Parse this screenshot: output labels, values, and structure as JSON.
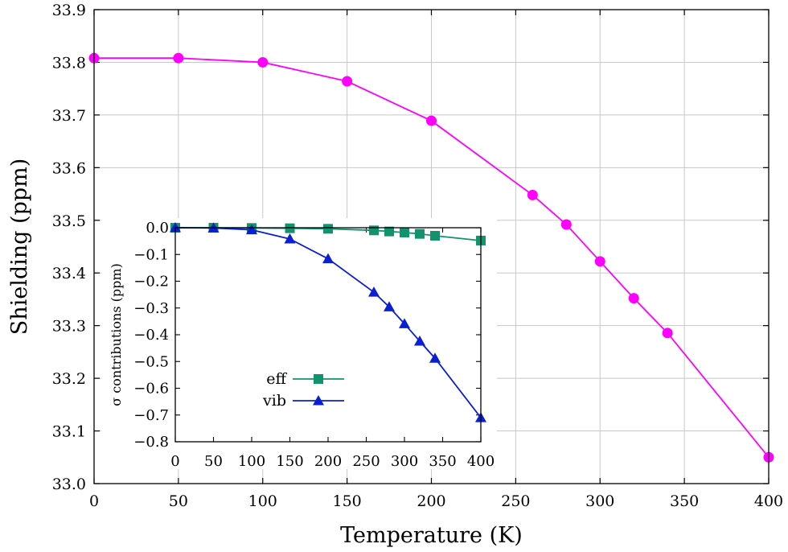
{
  "chart_data": [
    {
      "type": "line",
      "xlabel": "Temperature (K)",
      "ylabel": "Shielding (ppm)",
      "xlim": [
        0,
        400
      ],
      "ylim": [
        33.0,
        33.9
      ],
      "xticks": [
        "0",
        "50",
        "100",
        "150",
        "200",
        "250",
        "300",
        "350",
        "400"
      ],
      "yticks": [
        "33.0",
        "33.1",
        "33.2",
        "33.3",
        "33.4",
        "33.5",
        "33.6",
        "33.7",
        "33.8",
        "33.9"
      ],
      "grid": true,
      "series": [
        {
          "color": "#ff00ff",
          "marker": "circle",
          "x": [
            0,
            50,
            100,
            150,
            200,
            260,
            280,
            300,
            320,
            340,
            400
          ],
          "y": [
            33.808,
            33.808,
            33.8,
            33.764,
            33.689,
            33.548,
            33.492,
            33.422,
            33.352,
            33.286,
            33.05
          ]
        }
      ]
    },
    {
      "type": "line",
      "xlabel": "",
      "ylabel": "σ contributions (ppm)",
      "xlim": [
        0,
        400
      ],
      "ylim": [
        -0.8,
        0.0
      ],
      "xticks": [
        "0",
        "50",
        "100",
        "150",
        "200",
        "250",
        "300",
        "350",
        "400"
      ],
      "yticks": [
        "0.0",
        "−0.1",
        "−0.2",
        "−0.3",
        "−0.4",
        "−0.5",
        "−0.6",
        "−0.7",
        "−0.8"
      ],
      "grid": false,
      "legend_position": "bottom-left",
      "series": [
        {
          "name": "eff",
          "color": "#12936e",
          "marker": "square",
          "x": [
            0,
            50,
            100,
            150,
            200,
            260,
            280,
            300,
            320,
            340,
            400
          ],
          "y": [
            0.0,
            0.0,
            -0.001,
            -0.002,
            -0.004,
            -0.01,
            -0.014,
            -0.018,
            -0.023,
            -0.03,
            -0.048
          ]
        },
        {
          "name": "vib",
          "color": "#0a1ed2",
          "marker": "triangle",
          "x": [
            0,
            50,
            100,
            150,
            200,
            260,
            280,
            300,
            320,
            340,
            400
          ],
          "y": [
            0.0,
            -0.001,
            -0.008,
            -0.042,
            -0.116,
            -0.241,
            -0.296,
            -0.359,
            -0.424,
            -0.488,
            -0.71
          ]
        }
      ]
    }
  ]
}
